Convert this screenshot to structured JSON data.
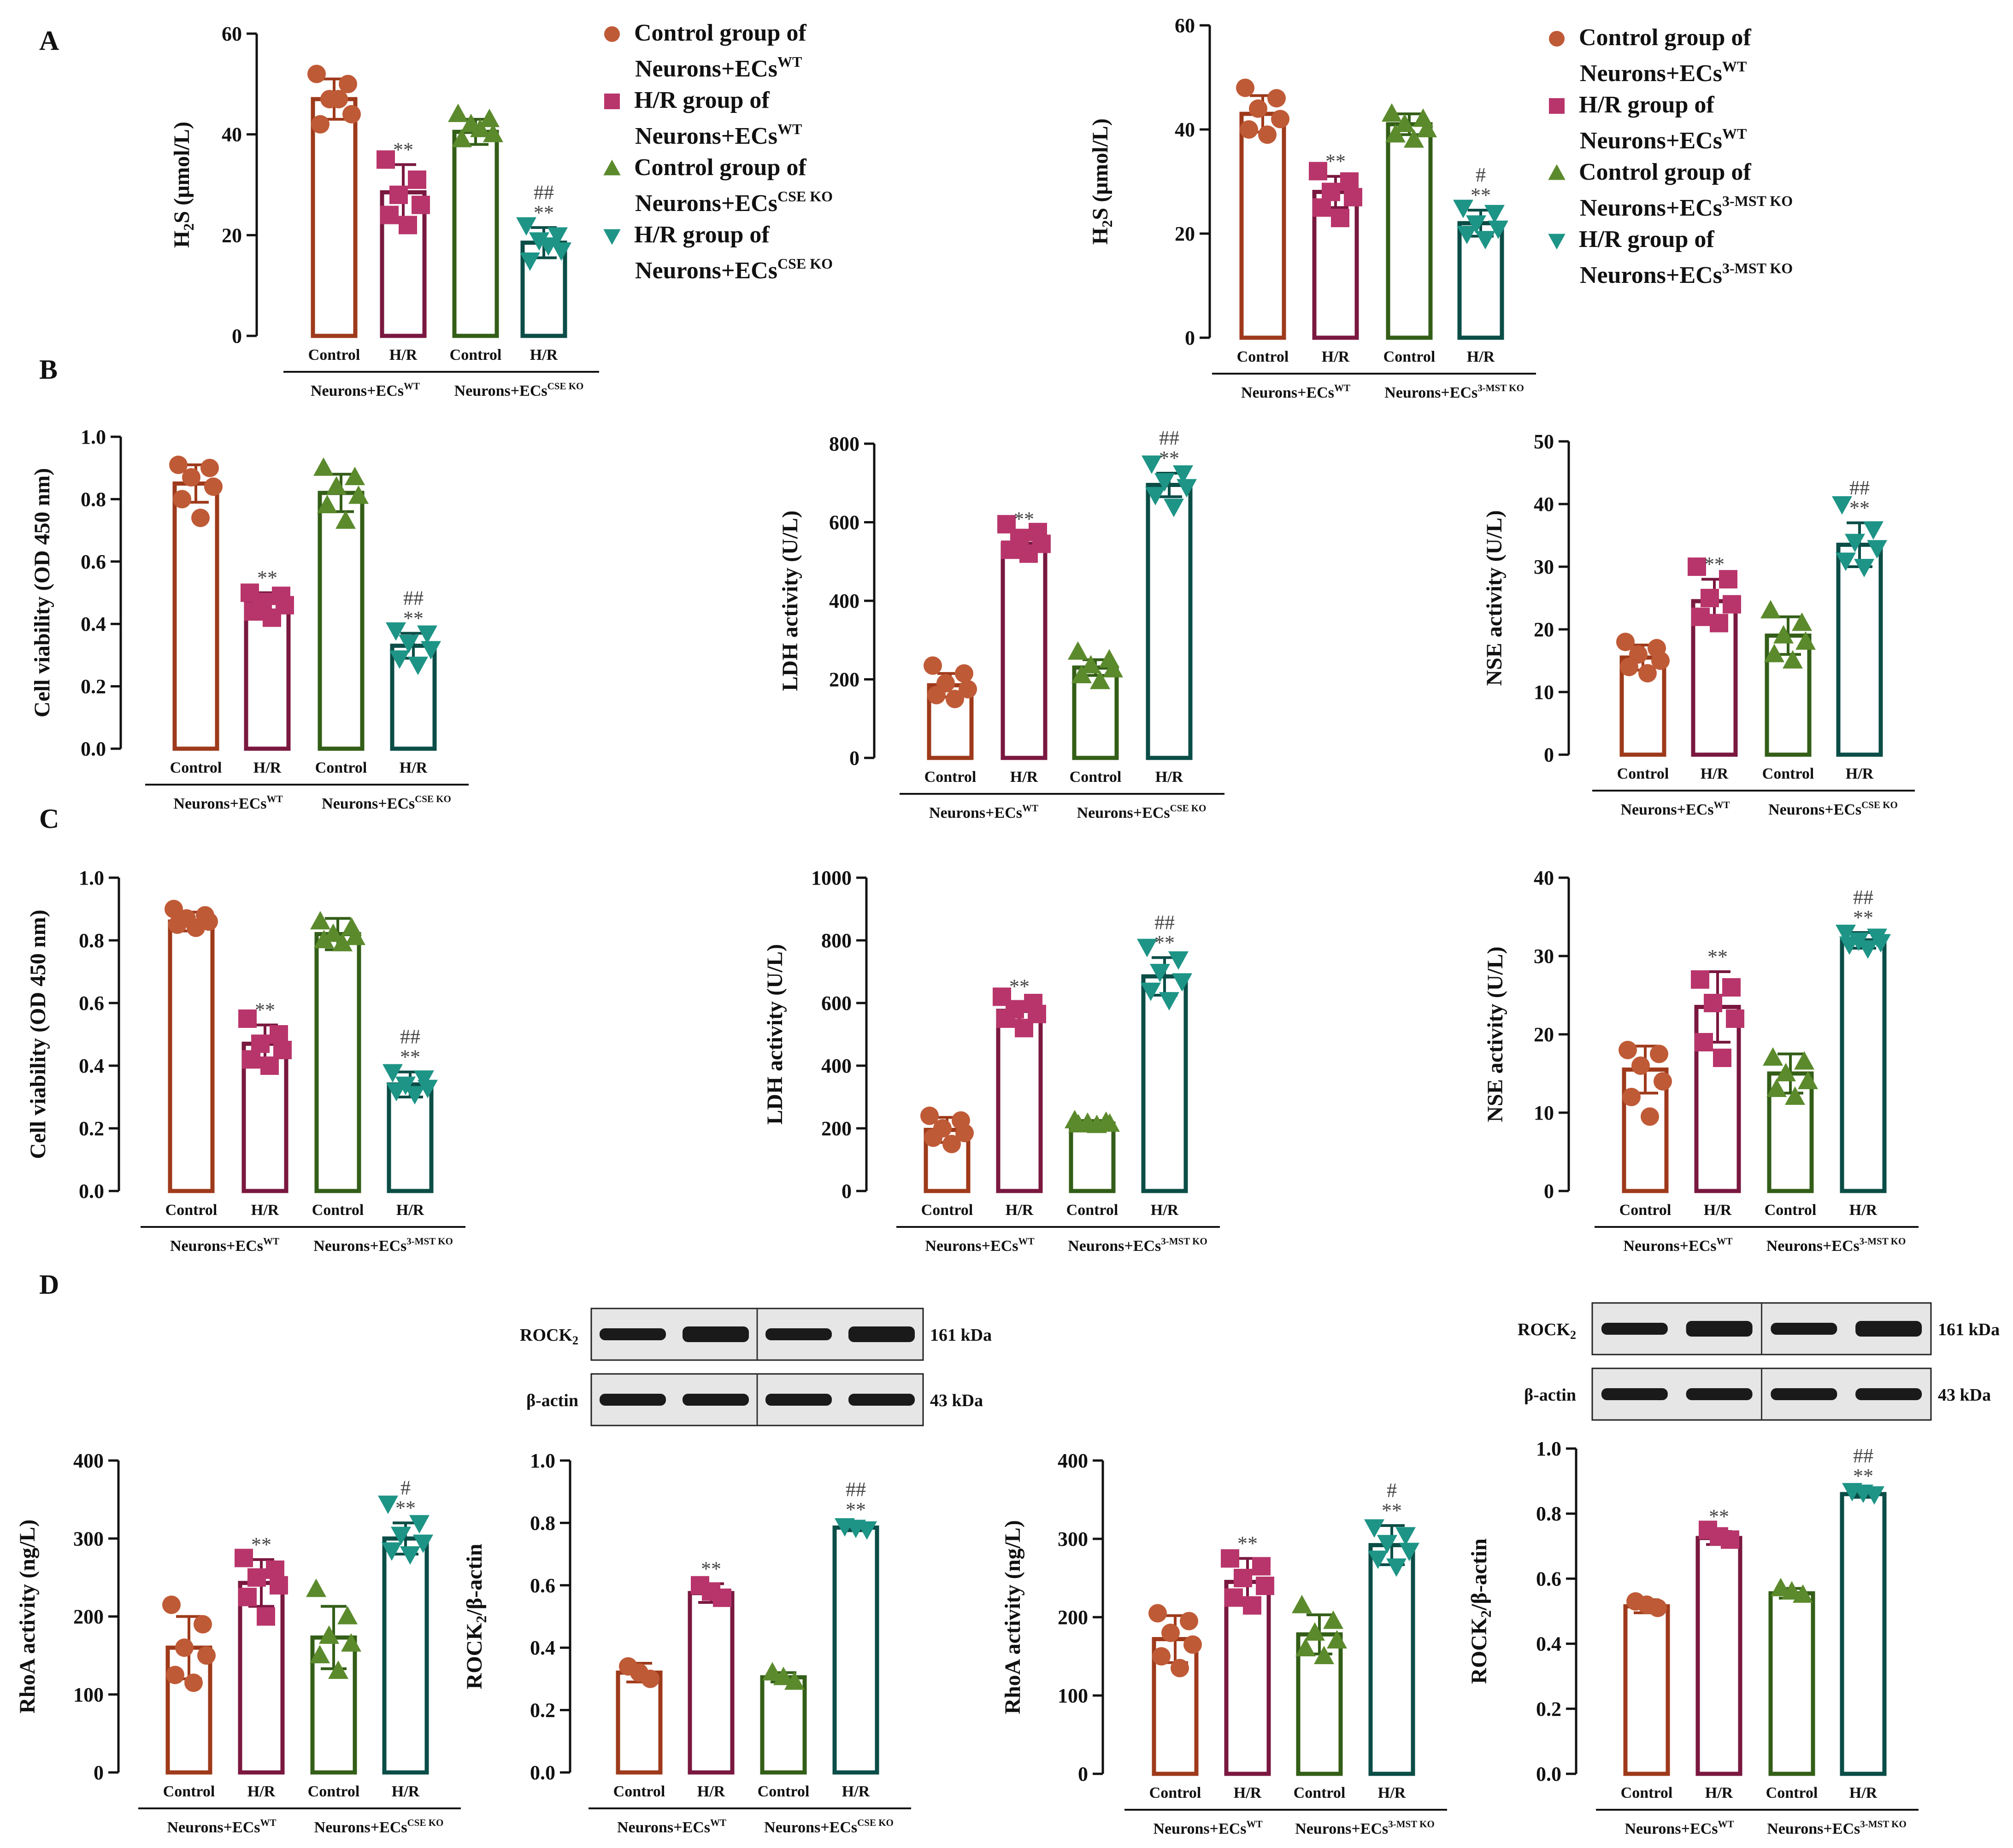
{
  "colors": {
    "control_wt": "#9e3a1b",
    "hr_wt": "#7a1840",
    "control_ko": "#335e17",
    "hr_ko": "#0b4d47",
    "dot_control_wt": "#bf5a36",
    "dot_hr_wt": "#b8356b",
    "dot_control_ko": "#5b8a2c",
    "dot_hr_ko": "#1d9486"
  },
  "panels": [
    {
      "id": "A",
      "label": "A"
    },
    {
      "id": "B",
      "label": "B"
    },
    {
      "id": "C",
      "label": "C"
    },
    {
      "id": "D",
      "label": "D"
    }
  ],
  "legends": [
    {
      "id": "legend-a1",
      "entries": [
        {
          "marker": "circle",
          "line1": "Control group of",
          "line2": "Neurons+ECs",
          "sup": "WT"
        },
        {
          "marker": "square",
          "line1": "H/R group of",
          "line2": "Neurons+ECs",
          "sup": "WT"
        },
        {
          "marker": "triangle-up",
          "line1": "Control group of",
          "line2": "Neurons+ECs",
          "sup": "CSE KO"
        },
        {
          "marker": "triangle-down",
          "line1": "H/R group of",
          "line2": "Neurons+ECs",
          "sup": "CSE KO"
        }
      ]
    },
    {
      "id": "legend-a2",
      "entries": [
        {
          "marker": "circle",
          "line1": "Control group of",
          "line2": "Neurons+ECs",
          "sup": "WT"
        },
        {
          "marker": "square",
          "line1": "H/R group of",
          "line2": "Neurons+ECs",
          "sup": "WT"
        },
        {
          "marker": "triangle-up",
          "line1": "Control group of",
          "line2": "Neurons+ECs",
          "sup": "3-MST KO"
        },
        {
          "marker": "triangle-down",
          "line1": "H/R group of",
          "line2": "Neurons+ECs",
          "sup": "3-MST KO"
        }
      ]
    }
  ],
  "blots": [
    {
      "id": "blot-cse",
      "bands": [
        {
          "name": "ROCK",
          "sub": "2",
          "kda": "161 kDa"
        },
        {
          "name": "β-actin",
          "sub": "",
          "kda": "43 kDa"
        }
      ]
    },
    {
      "id": "blot-mst",
      "bands": [
        {
          "name": "ROCK",
          "sub": "2",
          "kda": "161 kDa"
        },
        {
          "name": "β-actin",
          "sub": "",
          "kda": "43 kDa"
        }
      ]
    }
  ],
  "chart_data": [
    {
      "id": "A1",
      "type": "bar",
      "panel": "A",
      "ylabel": "H",
      "ylabel_sub": "2",
      "ylabel_tail": "S (μmol/L)",
      "ylim": [
        0,
        60
      ],
      "yticks": [
        "0",
        "20",
        "40",
        "60"
      ],
      "categories": [
        "Control",
        "H/R",
        "Control",
        "H/R"
      ],
      "groups": [
        {
          "name": "Neurons+ECs",
          "sup": "WT"
        },
        {
          "name": "Neurons+ECs",
          "sup": "CSE KO"
        }
      ],
      "values": [
        47,
        28.5,
        40.5,
        18.5
      ],
      "errors": [
        4,
        5.5,
        2.5,
        3
      ],
      "points": [
        [
          52,
          50,
          47,
          44,
          42,
          47
        ],
        [
          35,
          31,
          28,
          26,
          24,
          22
        ],
        [
          44,
          43,
          42,
          40,
          39,
          41
        ],
        [
          22,
          20,
          19,
          17,
          15,
          18
        ]
      ],
      "annotations": [
        "",
        "**",
        "",
        "##\n**"
      ]
    },
    {
      "id": "A2",
      "type": "bar",
      "panel": "A",
      "ylabel": "H",
      "ylabel_sub": "2",
      "ylabel_tail": "S (μmol/L)",
      "ylim": [
        0,
        60
      ],
      "yticks": [
        "0",
        "20",
        "40",
        "60"
      ],
      "categories": [
        "Control",
        "H/R",
        "Control",
        "H/R"
      ],
      "groups": [
        {
          "name": "Neurons+ECs",
          "sup": "WT"
        },
        {
          "name": "Neurons+ECs",
          "sup": "3-MST KO"
        }
      ],
      "values": [
        43,
        28,
        41,
        22
      ],
      "errors": [
        3.5,
        3,
        2,
        2.5
      ],
      "points": [
        [
          48,
          46,
          44,
          42,
          40,
          39
        ],
        [
          32,
          30,
          28,
          27,
          25,
          23
        ],
        [
          43,
          42,
          41,
          40,
          39,
          38
        ],
        [
          25,
          24,
          22,
          21,
          20,
          19
        ]
      ],
      "annotations": [
        "",
        "**",
        "",
        "#\n**"
      ]
    },
    {
      "id": "B1",
      "type": "bar",
      "panel": "B",
      "ylabel": "Cell  viability (OD 450 nm)",
      "ylim": [
        0,
        1.0
      ],
      "yticks": [
        "0.0",
        "0.2",
        "0.4",
        "0.6",
        "0.8",
        "1.0"
      ],
      "categories": [
        "Control",
        "H/R",
        "Control",
        "H/R"
      ],
      "groups": [
        {
          "name": "Neurons+ECs",
          "sup": "WT"
        },
        {
          "name": "Neurons+ECs",
          "sup": "CSE KO"
        }
      ],
      "values": [
        0.85,
        0.47,
        0.82,
        0.33
      ],
      "errors": [
        0.06,
        0.03,
        0.06,
        0.04
      ],
      "points": [
        [
          0.91,
          0.9,
          0.87,
          0.84,
          0.8,
          0.74
        ],
        [
          0.5,
          0.49,
          0.47,
          0.46,
          0.44,
          0.42
        ],
        [
          0.9,
          0.87,
          0.84,
          0.81,
          0.78,
          0.73
        ],
        [
          0.38,
          0.37,
          0.34,
          0.32,
          0.29,
          0.27
        ]
      ],
      "annotations": [
        "",
        "**",
        "",
        "##\n**"
      ]
    },
    {
      "id": "B2",
      "type": "bar",
      "panel": "B",
      "ylabel": "LDH activity (U/L)",
      "ylim": [
        0,
        800
      ],
      "yticks": [
        "0",
        "200",
        "400",
        "600",
        "800"
      ],
      "categories": [
        "Control",
        "H/R",
        "Control",
        "H/R"
      ],
      "groups": [
        {
          "name": "Neurons+ECs",
          "sup": "WT"
        },
        {
          "name": "Neurons+ECs",
          "sup": "CSE KO"
        }
      ],
      "values": [
        185,
        545,
        230,
        695
      ],
      "errors": [
        30,
        25,
        20,
        30
      ],
      "points": [
        [
          235,
          215,
          190,
          175,
          160,
          150
        ],
        [
          595,
          575,
          560,
          545,
          530,
          520
        ],
        [
          270,
          250,
          235,
          225,
          210,
          195
        ],
        [
          750,
          725,
          705,
          690,
          670,
          640
        ]
      ],
      "annotations": [
        "",
        "**",
        "",
        "##\n**"
      ]
    },
    {
      "id": "B3",
      "type": "bar",
      "panel": "B",
      "ylabel": "NSE activity (U/L)",
      "ylim": [
        0,
        50
      ],
      "yticks": [
        "0",
        "10",
        "20",
        "30",
        "40",
        "50"
      ],
      "categories": [
        "Control",
        "H/R",
        "Control",
        "H/R"
      ],
      "groups": [
        {
          "name": "Neurons+ECs",
          "sup": "WT"
        },
        {
          "name": "Neurons+ECs",
          "sup": "CSE KO"
        }
      ],
      "values": [
        15.5,
        24.5,
        19,
        33.5
      ],
      "errors": [
        2,
        3.5,
        3,
        3.5
      ],
      "points": [
        [
          18,
          17,
          16,
          15,
          14,
          13
        ],
        [
          30,
          28,
          25,
          24,
          22,
          21
        ],
        [
          23,
          21,
          19,
          18,
          16,
          15
        ],
        [
          40,
          36,
          34,
          33,
          31,
          30
        ]
      ],
      "annotations": [
        "",
        "**",
        "",
        "##\n**"
      ]
    },
    {
      "id": "C1",
      "type": "bar",
      "panel": "C",
      "ylabel": "Cell  viability (OD 450 nm)",
      "ylim": [
        0,
        1.0
      ],
      "yticks": [
        "0.0",
        "0.2",
        "0.4",
        "0.6",
        "0.8",
        "1.0"
      ],
      "categories": [
        "Control",
        "H/R",
        "Control",
        "H/R"
      ],
      "groups": [
        {
          "name": "Neurons+ECs",
          "sup": "WT"
        },
        {
          "name": "Neurons+ECs",
          "sup": "3-MST KO"
        }
      ],
      "values": [
        0.86,
        0.47,
        0.82,
        0.34
      ],
      "errors": [
        0.03,
        0.06,
        0.05,
        0.04
      ],
      "points": [
        [
          0.9,
          0.88,
          0.87,
          0.86,
          0.85,
          0.84
        ],
        [
          0.55,
          0.5,
          0.47,
          0.45,
          0.42,
          0.4
        ],
        [
          0.86,
          0.84,
          0.82,
          0.81,
          0.8,
          0.79
        ],
        [
          0.38,
          0.36,
          0.34,
          0.33,
          0.32,
          0.31
        ]
      ],
      "annotations": [
        "",
        "**",
        "",
        "##\n**"
      ]
    },
    {
      "id": "C2",
      "type": "bar",
      "panel": "C",
      "ylabel": "LDH activity (U/L)",
      "ylim": [
        0,
        1000
      ],
      "yticks": [
        "0",
        "200",
        "400",
        "600",
        "800",
        "1000"
      ],
      "categories": [
        "Control",
        "H/R",
        "Control",
        "H/R"
      ],
      "groups": [
        {
          "name": "Neurons+ECs",
          "sup": "WT"
        },
        {
          "name": "Neurons+ECs",
          "sup": "3-MST KO"
        }
      ],
      "values": [
        195,
        575,
        215,
        685
      ],
      "errors": [
        40,
        30,
        10,
        60
      ],
      "points": [
        [
          240,
          225,
          200,
          185,
          170,
          150
        ],
        [
          620,
          600,
          580,
          565,
          550,
          520
        ],
        [
          225,
          220,
          217,
          214,
          212,
          210
        ],
        [
          780,
          740,
          700,
          670,
          640,
          610
        ]
      ],
      "annotations": [
        "",
        "**",
        "",
        "##\n**"
      ]
    },
    {
      "id": "C3",
      "type": "bar",
      "panel": "C",
      "ylabel": "NSE activity (U/L)",
      "ylim": [
        0,
        40
      ],
      "yticks": [
        "0",
        "10",
        "20",
        "30",
        "40"
      ],
      "categories": [
        "Control",
        "H/R",
        "Control",
        "H/R"
      ],
      "groups": [
        {
          "name": "Neurons+ECs",
          "sup": "WT"
        },
        {
          "name": "Neurons+ECs",
          "sup": "3-MST KO"
        }
      ],
      "values": [
        15.5,
        23.5,
        15,
        32
      ],
      "errors": [
        3,
        4.5,
        2.5,
        1
      ],
      "points": [
        [
          18,
          17.5,
          16,
          14,
          12,
          9.5
        ],
        [
          27,
          26,
          24,
          22,
          19,
          17
        ],
        [
          17,
          16.5,
          15,
          14,
          13,
          12
        ],
        [
          33,
          32.5,
          32,
          31.8,
          31.5,
          31
        ]
      ],
      "annotations": [
        "",
        "**",
        "",
        "##\n**"
      ]
    },
    {
      "id": "D1",
      "type": "bar",
      "panel": "D",
      "ylabel": "RhoA activity (ng/L)",
      "ylim": [
        0,
        400
      ],
      "yticks": [
        "0",
        "100",
        "200",
        "300",
        "400"
      ],
      "categories": [
        "Control",
        "H/R",
        "Control",
        "H/R"
      ],
      "groups": [
        {
          "name": "Neurons+ECs",
          "sup": "WT"
        },
        {
          "name": "Neurons+ECs",
          "sup": "CSE KO"
        }
      ],
      "values": [
        160,
        243,
        173,
        300
      ],
      "errors": [
        40,
        30,
        40,
        20
      ],
      "points": [
        [
          215,
          190,
          160,
          150,
          125,
          115
        ],
        [
          275,
          260,
          250,
          240,
          225,
          200
        ],
        [
          235,
          200,
          175,
          165,
          150,
          130
        ],
        [
          345,
          320,
          305,
          295,
          285,
          280
        ]
      ],
      "annotations": [
        "",
        "**",
        "",
        "#\n**"
      ]
    },
    {
      "id": "D2",
      "type": "bar",
      "panel": "D",
      "ylabel": "ROCK",
      "ylabel_sub": "2",
      "ylabel_tail": "/β-actin",
      "ylim": [
        0,
        1.0
      ],
      "yticks": [
        "0.0",
        "0.2",
        "0.4",
        "0.6",
        "0.8",
        "1.0"
      ],
      "categories": [
        "Control",
        "H/R",
        "Control",
        "H/R"
      ],
      "groups": [
        {
          "name": "Neurons+ECs",
          "sup": "WT"
        },
        {
          "name": "Neurons+ECs",
          "sup": "CSE KO"
        }
      ],
      "values": [
        0.32,
        0.575,
        0.305,
        0.785
      ],
      "errors": [
        0.03,
        0.03,
        0.015,
        0.01
      ],
      "points": [
        [
          0.34,
          0.32,
          0.3
        ],
        [
          0.6,
          0.58,
          0.56
        ],
        [
          0.32,
          0.305,
          0.29
        ],
        [
          0.79,
          0.785,
          0.78
        ]
      ],
      "annotations": [
        "",
        "**",
        "",
        "##\n**"
      ]
    },
    {
      "id": "D3",
      "type": "bar",
      "panel": "D",
      "ylabel": "RhoA activity (ng/L)",
      "ylim": [
        0,
        400
      ],
      "yticks": [
        "0",
        "100",
        "200",
        "300",
        "400"
      ],
      "categories": [
        "Control",
        "H/R",
        "Control",
        "H/R"
      ],
      "groups": [
        {
          "name": "Neurons+ECs",
          "sup": "WT"
        },
        {
          "name": "Neurons+ECs",
          "sup": "3-MST KO"
        }
      ],
      "values": [
        172,
        245,
        178,
        292
      ],
      "errors": [
        30,
        30,
        25,
        25
      ],
      "points": [
        [
          205,
          195,
          180,
          165,
          150,
          135
        ],
        [
          275,
          265,
          250,
          240,
          225,
          215
        ],
        [
          215,
          195,
          180,
          170,
          160,
          150
        ],
        [
          315,
          305,
          295,
          285,
          275,
          265
        ]
      ],
      "annotations": [
        "",
        "**",
        "",
        "#\n**"
      ]
    },
    {
      "id": "D4",
      "type": "bar",
      "panel": "D",
      "ylabel": "ROCK",
      "ylabel_sub": "2",
      "ylabel_tail": "/β-actin",
      "ylim": [
        0,
        1.0
      ],
      "yticks": [
        "0.0",
        "0.2",
        "0.4",
        "0.6",
        "0.8",
        "1.0"
      ],
      "categories": [
        "Control",
        "H/R",
        "Control",
        "H/R"
      ],
      "groups": [
        {
          "name": "Neurons+ECs",
          "sup": "WT"
        },
        {
          "name": "Neurons+ECs",
          "sup": "3-MST KO"
        }
      ],
      "values": [
        0.515,
        0.725,
        0.555,
        0.86
      ],
      "errors": [
        0.02,
        0.02,
        0.015,
        0.01
      ],
      "points": [
        [
          0.53,
          0.52,
          0.51
        ],
        [
          0.75,
          0.73,
          0.72
        ],
        [
          0.57,
          0.56,
          0.55
        ],
        [
          0.87,
          0.865,
          0.86
        ]
      ],
      "annotations": [
        "",
        "**",
        "",
        "##\n**"
      ]
    }
  ]
}
